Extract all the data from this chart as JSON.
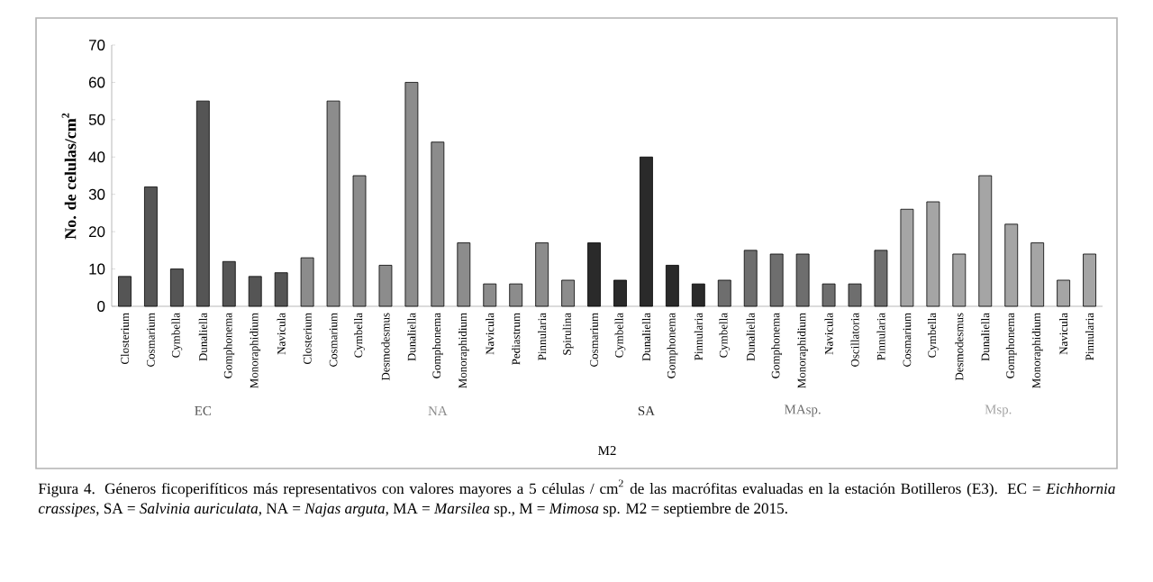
{
  "chart_data": {
    "type": "bar",
    "ylabel": "No. de celulas/cm$^{2}$",
    "categories": [
      "Closterium",
      "Cosmarium",
      "Cymbella",
      "Dunaliella",
      "Gomphonema",
      "Monoraphidium",
      "Navicula",
      "Closterium",
      "Cosmarium",
      "Cymbella",
      "Desmodesmus",
      "Dunaliella",
      "Gomphonema",
      "Monoraphidium",
      "Navicula",
      "Pediastrum",
      "Pinnularia",
      "Spirulina",
      "Cosmarium",
      "Cymbella",
      "Dunaliella",
      "Gomphonema",
      "Pinnularia",
      "Cymbella",
      "Dunaliella",
      "Gomphonema",
      "Monoraphidium",
      "Navicula",
      "Oscillatoria",
      "Pinnularia",
      "Cosmarium",
      "Cymbella",
      "Desmodesmus",
      "Dunaliella",
      "Gomphonema",
      "Monoraphidium",
      "Navicula",
      "Pinnularia"
    ],
    "series": [
      {
        "name": "EC",
        "color": "#555555",
        "values": [
          8,
          32,
          10,
          55,
          12,
          8,
          9,
          null,
          null,
          null,
          null,
          null,
          null,
          null,
          null,
          null,
          null,
          null,
          null,
          null,
          null,
          null,
          null,
          null,
          null,
          null,
          null,
          null,
          null,
          null,
          null,
          null,
          null,
          null,
          null,
          null,
          null,
          null
        ]
      },
      {
        "name": "NA",
        "color": "#8c8c8c",
        "values": [
          null,
          null,
          null,
          null,
          null,
          null,
          null,
          13,
          55,
          35,
          11,
          60,
          44,
          17,
          6,
          6,
          17,
          7,
          null,
          null,
          null,
          null,
          null,
          null,
          null,
          null,
          null,
          null,
          null,
          null,
          null,
          null,
          null,
          null,
          null,
          null,
          null,
          null
        ]
      },
      {
        "name": "SA",
        "color": "#2a2a2a",
        "values": [
          null,
          null,
          null,
          null,
          null,
          null,
          null,
          null,
          null,
          null,
          null,
          null,
          null,
          null,
          null,
          null,
          null,
          null,
          17,
          7,
          40,
          11,
          6,
          null,
          null,
          null,
          null,
          null,
          null,
          null,
          null,
          null,
          null,
          null,
          null,
          null,
          null,
          null
        ]
      },
      {
        "name": "MAsp.",
        "color": "#6e6e6e",
        "values": [
          null,
          null,
          null,
          null,
          null,
          null,
          null,
          null,
          null,
          null,
          null,
          null,
          null,
          null,
          null,
          null,
          null,
          null,
          null,
          null,
          null,
          null,
          null,
          7,
          15,
          14,
          14,
          6,
          6,
          15,
          null,
          null,
          null,
          null,
          null,
          null,
          null,
          null
        ]
      },
      {
        "name": "Msp.",
        "color": "#a5a5a5",
        "values": [
          null,
          null,
          null,
          null,
          null,
          null,
          null,
          null,
          null,
          null,
          null,
          null,
          null,
          null,
          null,
          null,
          null,
          null,
          null,
          null,
          null,
          null,
          null,
          null,
          null,
          null,
          null,
          null,
          null,
          null,
          26,
          28,
          14,
          35,
          22,
          17,
          7,
          14
        ]
      }
    ],
    "ylim": [
      0,
      70
    ],
    "yticks": [
      0,
      10,
      20,
      30,
      40,
      50,
      60,
      70
    ],
    "annotations": [
      "M2",
      "Figura 4. Géneros ficoperifíticos más representativos con valores mayores a 5 células / cm$^{2}$ de las macrófitas evaluadas en la estación Botilleros (E3). EC = *Eichhornia crassipes*, SA = *Salvinia auriculata*, NA = *Najas arguta*, MA = *Marsilea* sp., M = *Mimosa* sp. M2 = septiembre de 2015."
    ]
  }
}
